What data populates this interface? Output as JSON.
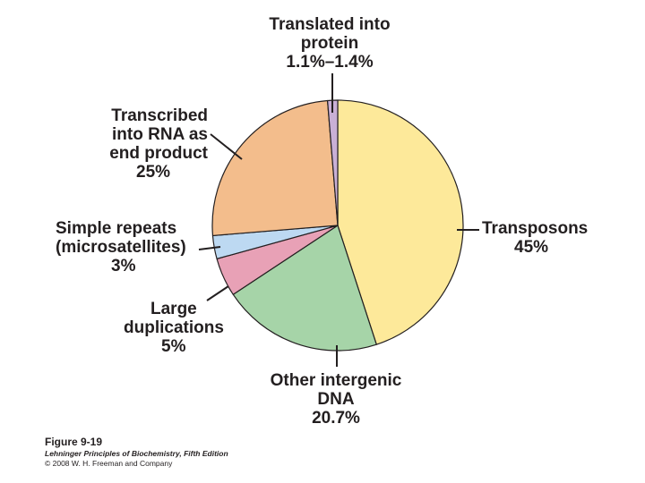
{
  "chart_data": {
    "type": "pie",
    "slices": [
      {
        "label": "Transposons",
        "value": 45,
        "display": "45%",
        "color": "#fde99a"
      },
      {
        "label": "Other intergenic DNA",
        "value": 20.7,
        "display": "20.7%",
        "color": "#a6d4a8"
      },
      {
        "label": "Large duplications",
        "value": 5,
        "display": "5%",
        "color": "#e8a1b6"
      },
      {
        "label": "Simple repeats (microsatellites)",
        "value": 3,
        "display": "3%",
        "color": "#bdd9f2"
      },
      {
        "label": "Transcribed into RNA as end product",
        "value": 25,
        "display": "25%",
        "color": "#f3bd8c"
      },
      {
        "label": "Translated into protein",
        "value": 1.3,
        "display": "1.1%–1.4%",
        "color": "#c9b0d6"
      }
    ]
  },
  "labels": {
    "translated": {
      "line1": "Translated into",
      "line2": "protein",
      "line3": "1.1%–1.4%"
    },
    "transcribed": {
      "line1": "Transcribed",
      "line2": "into RNA as",
      "line3": "end product",
      "line4": "25%"
    },
    "simple_repeats": {
      "line1": "Simple repeats",
      "line2": "(microsatellites)",
      "line3": "3%"
    },
    "large_dup": {
      "line1": "Large",
      "line2": "duplications",
      "line3": "5%"
    },
    "other_intergenic": {
      "line1": "Other intergenic",
      "line2": "DNA",
      "line3": "20.7%"
    },
    "transposons": {
      "line1": "Transposons",
      "line2": "45%"
    }
  },
  "caption": {
    "figure": "Figure 9-19",
    "book": "Lehninger Principles of Biochemistry, Fifth Edition",
    "copyright": "© 2008 W. H. Freeman and Company"
  }
}
